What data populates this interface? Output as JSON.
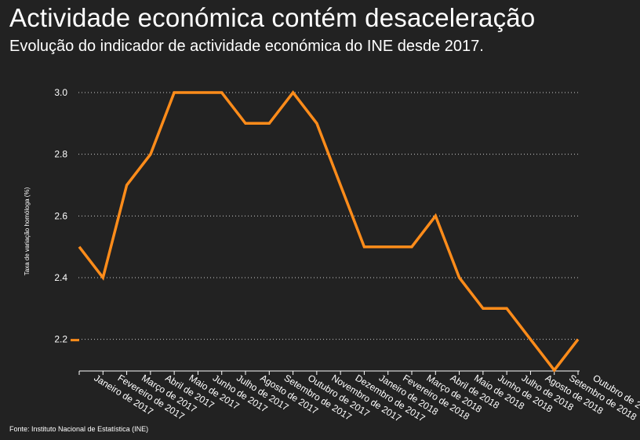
{
  "title": "Actividade económica contém desaceleração",
  "subtitle": "Evolução do indicador de actividade económica do INE desde 2017.",
  "source": "Fonte: Instituto Nacional de Estatística (INE)",
  "colors": {
    "background": "#222222",
    "line": "#ff8c1a",
    "text": "#ffffff",
    "grid": "#cccccc"
  },
  "chart_data": {
    "type": "line",
    "ylabel": "Taxa de variação homóloga (%)",
    "ylim": [
      2.1,
      3.0
    ],
    "yticks": [
      "2.2",
      "2.4",
      "2.6",
      "2.8",
      "3.0"
    ],
    "grid": "horizontal-dotted",
    "categories": [
      "Janeiro de 2017",
      "Fevereiro de 2017",
      "Março de 2017",
      "Abril de 2017",
      "Maio de 2017",
      "Junho de 2017",
      "Julho de 2017",
      "Agosto de 2017",
      "Setembro de 2017",
      "Outubro de 2017",
      "Novembro de 2017",
      "Dezembro de 2017",
      "Janeiro de 2018",
      "Fevereiro de 2018",
      "Março de 2018",
      "Abril de 2018",
      "Maio de 2018",
      "Junho de 2018",
      "Julho de 2018",
      "Agosto de 2018",
      "Setembro de 2018",
      "Outubro de 2018"
    ],
    "values": [
      2.5,
      2.4,
      2.7,
      2.8,
      3.0,
      3.0,
      3.0,
      2.9,
      2.9,
      3.0,
      2.9,
      2.7,
      2.5,
      2.5,
      2.5,
      2.6,
      2.4,
      2.3,
      2.3,
      2.2,
      2.1,
      2.2
    ]
  }
}
